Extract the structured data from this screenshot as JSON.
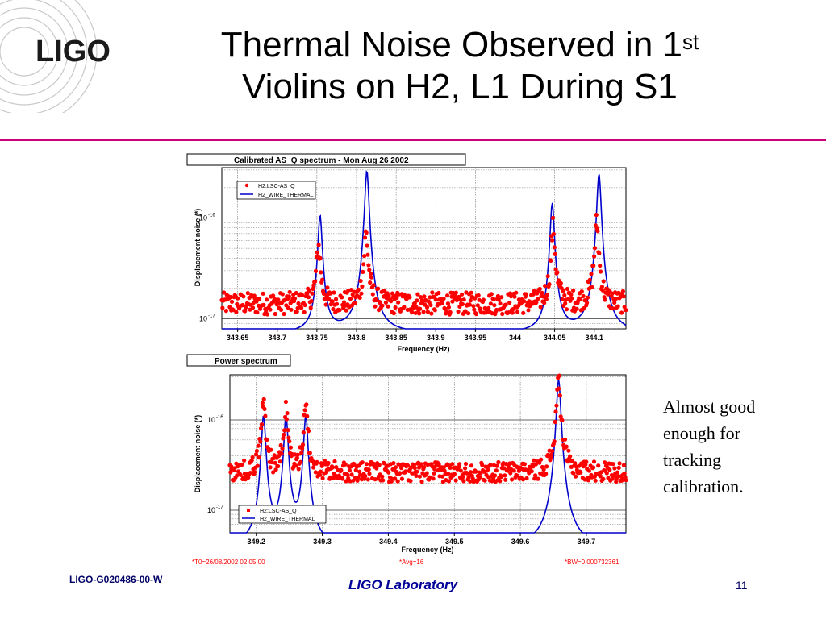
{
  "slide": {
    "logo_text": "LIGO",
    "title_line1": "Thermal Noise Observed in 1",
    "title_sup": "st",
    "title_line2": "Violins on H2, L1 During S1",
    "annotation": [
      "Almost good",
      "enough for",
      "tracking",
      "calibration."
    ],
    "footer_id": "LIGO-G020486-00-W",
    "footer_lab": "LIGO Laboratory",
    "page_number": "11",
    "status_left": "*T0=26/08/2002 02:05:00",
    "status_mid": "*Avg=16",
    "status_right": "*BW=0.000732361",
    "colors": {
      "rule": "#cc0077",
      "data": "#ff0000",
      "model": "#0000cc",
      "footer": "#000099"
    }
  },
  "chart_data": [
    {
      "type": "scatter",
      "title": "Calibrated AS_Q spectrum - Mon Aug 26 2002",
      "xlabel": "Frequency (Hz)",
      "ylabel": "Displacement noise (*)",
      "xlim": [
        343.63,
        344.14
      ],
      "ylim_log10": [
        -17.1,
        -15.5
      ],
      "yscale": "log",
      "x_ticks": [
        "343.65",
        "343.7",
        "343.75",
        "343.8",
        "343.85",
        "343.9",
        "343.95",
        "344",
        "344.05",
        "344.1"
      ],
      "y_ticks": [
        {
          "base": "10",
          "exp": "-16",
          "log10": -16
        },
        {
          "base": "10",
          "exp": "-17",
          "log10": -17
        }
      ],
      "grid": true,
      "legend_position": "top-left",
      "series": [
        {
          "name": "H2:LSC-AS_Q",
          "style": "markers",
          "color": "#ff0000",
          "baseline_log10": -16.85,
          "peaks": [
            {
              "x": 343.752,
              "log10": -16.28
            },
            {
              "x": 343.812,
              "log10": -16.15
            },
            {
              "x": 344.048,
              "log10": -16.1
            },
            {
              "x": 344.103,
              "log10": -16.05
            }
          ]
        },
        {
          "name": "H2_WIRE_THERMAL",
          "style": "line",
          "color": "#0000cc",
          "floor_log10": -17.15,
          "peaks": [
            {
              "x": 343.754,
              "log10": -15.97
            },
            {
              "x": 343.813,
              "log10": -15.53
            },
            {
              "x": 344.047,
              "log10": -15.85
            },
            {
              "x": 344.106,
              "log10": -15.56
            }
          ]
        }
      ]
    },
    {
      "type": "scatter",
      "title": "Power spectrum",
      "xlabel": "Frequency (Hz)",
      "ylabel": "Displacement noise (*)",
      "xlim": [
        349.16,
        349.76
      ],
      "ylim_log10": [
        -17.25,
        -15.5
      ],
      "yscale": "log",
      "x_ticks": [
        "349.2",
        "349.3",
        "349.4",
        "349.5",
        "349.6",
        "349.7"
      ],
      "y_ticks": [
        {
          "base": "10",
          "exp": "-16",
          "log10": -16
        },
        {
          "base": "10",
          "exp": "-17",
          "log10": -17
        }
      ],
      "grid": true,
      "legend_position": "bottom-left",
      "series": [
        {
          "name": "H2:LSC-AS_Q",
          "style": "markers",
          "color": "#ff0000",
          "baseline_log10": -16.58,
          "peaks": [
            {
              "x": 349.211,
              "log10": -15.8
            },
            {
              "x": 349.245,
              "log10": -15.9
            },
            {
              "x": 349.275,
              "log10": -15.88
            },
            {
              "x": 349.658,
              "log10": -15.55
            }
          ]
        },
        {
          "name": "H2_WIRE_THERMAL",
          "style": "line",
          "color": "#0000cc",
          "floor_log10": -17.42,
          "peaks": [
            {
              "x": 349.211,
              "log10": -15.95
            },
            {
              "x": 349.245,
              "log10": -15.95
            },
            {
              "x": 349.275,
              "log10": -15.95
            },
            {
              "x": 349.658,
              "log10": -15.55
            }
          ]
        }
      ]
    }
  ]
}
